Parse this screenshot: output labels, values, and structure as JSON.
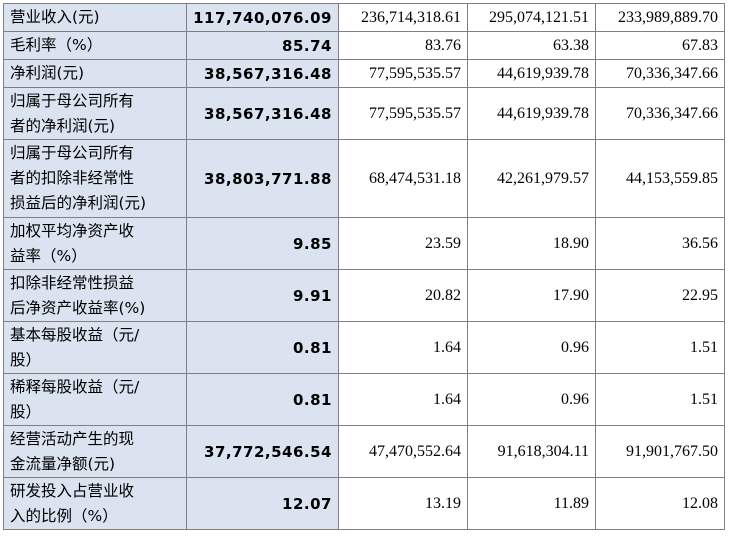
{
  "rows": [
    {
      "label": [
        "营业收入(元)"
      ],
      "values": [
        "117,740,076.09",
        "236,714,318.61",
        "295,074,121.51",
        "233,989,889.70"
      ]
    },
    {
      "label": [
        "毛利率（%）"
      ],
      "values": [
        "85.74",
        "83.76",
        "63.38",
        "67.83"
      ]
    },
    {
      "label": [
        "净利润(元)"
      ],
      "values": [
        "38,567,316.48",
        "77,595,535.57",
        "44,619,939.78",
        "70,336,347.66"
      ]
    },
    {
      "label": [
        "归属于母公司所有",
        "者的净利润(元)"
      ],
      "values": [
        "38,567,316.48",
        "77,595,535.57",
        "44,619,939.78",
        "70,336,347.66"
      ]
    },
    {
      "label": [
        "归属于母公司所有",
        "者的扣除非经常性",
        "损益后的净利润(元)"
      ],
      "values": [
        "38,803,771.88",
        "68,474,531.18",
        "42,261,979.57",
        "44,153,559.85"
      ]
    },
    {
      "label": [
        "加权平均净资产收",
        "益率（%）"
      ],
      "values": [
        "9.85",
        "23.59",
        "18.90",
        "36.56"
      ]
    },
    {
      "label": [
        "扣除非经常性损益",
        "后净资产收益率(%)"
      ],
      "values": [
        "9.91",
        "20.82",
        "17.90",
        "22.95"
      ]
    },
    {
      "label": [
        "基本每股收益（元/",
        "股）"
      ],
      "values": [
        "0.81",
        "1.64",
        "0.96",
        "1.51"
      ]
    },
    {
      "label": [
        "稀释每股收益（元/",
        "股）"
      ],
      "values": [
        "0.81",
        "1.64",
        "0.96",
        "1.51"
      ]
    },
    {
      "label": [
        "经营活动产生的现",
        "金流量净额(元)"
      ],
      "values": [
        "37,772,546.54",
        "47,470,552.64",
        "91,618,304.11",
        "91,901,767.50"
      ]
    },
    {
      "label": [
        "研发投入占营业收",
        "入的比例（%）"
      ],
      "values": [
        "12.07",
        "13.19",
        "11.89",
        "12.08"
      ]
    }
  ]
}
